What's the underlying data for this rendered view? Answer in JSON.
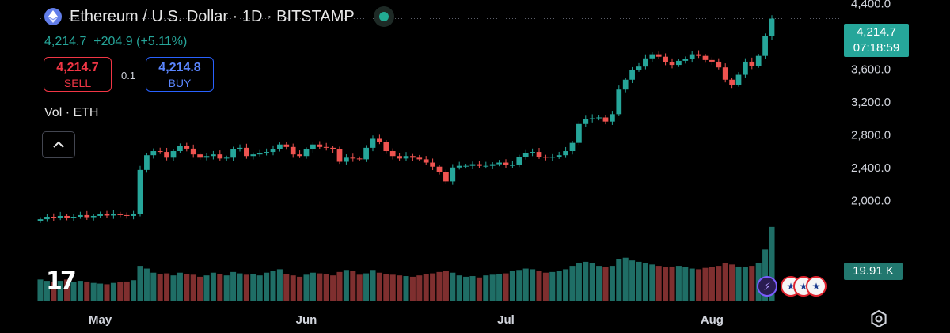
{
  "header": {
    "title": "Ethereum / U.S. Dollar · 1D · BITSTAMP",
    "last": "4,214.7",
    "change": "+204.9 (+5.11%)"
  },
  "trade": {
    "sell_price": "4,214.7",
    "sell_label": "SELL",
    "buy_price": "4,214.8",
    "buy_label": "BUY",
    "quantity": "0.1"
  },
  "volume_label": "Vol · ETH",
  "price_tag": {
    "price": "4,214.7",
    "countdown": "07:18:59"
  },
  "volume_tag": "19.91 K",
  "colors": {
    "up": "#26a69a",
    "down": "#ef5350",
    "vol_up": "#1f6e66",
    "vol_down": "#7f2f2f",
    "accent": "#2962ff"
  },
  "icons": [
    "ethereum-logo-icon",
    "live-status-icon",
    "collapse-chevron-icon",
    "tradingview-logo",
    "settings-icon",
    "lightning-event-icon",
    "us-flag-event-icon"
  ],
  "chart_data": {
    "type": "candlestick",
    "title": "",
    "y_ticks": [
      2000,
      2400,
      2800,
      3200,
      3600,
      4000,
      4400
    ],
    "y_tick_labels": [
      "2,000.0",
      "2,400.0",
      "2,800.0",
      "3,200.0",
      "3,600.0",
      "4,000.0",
      "4,400.0"
    ],
    "ylim": [
      1800,
      4480
    ],
    "x_tick_labels": [
      "May",
      "Jun",
      "Jul",
      "Aug"
    ],
    "x_tick_dates": [
      "2025-05-01",
      "2025-06-01",
      "2025-07-01",
      "2025-08-01"
    ],
    "dates_start": "2025-04-22",
    "dates_end": "2025-08-11",
    "last_price": 4214.7,
    "volume_last": "19.91 K",
    "closes": [
      1770,
      1800,
      1785,
      1810,
      1790,
      1800,
      1820,
      1795,
      1810,
      1830,
      1815,
      1835,
      1820,
      1810,
      1830,
      2370,
      2550,
      2600,
      2590,
      2520,
      2600,
      2660,
      2630,
      2560,
      2520,
      2540,
      2560,
      2510,
      2520,
      2620,
      2640,
      2540,
      2560,
      2580,
      2590,
      2620,
      2680,
      2650,
      2560,
      2540,
      2620,
      2680,
      2650,
      2640,
      2620,
      2470,
      2520,
      2510,
      2500,
      2640,
      2750,
      2710,
      2600,
      2540,
      2510,
      2540,
      2520,
      2500,
      2460,
      2410,
      2340,
      2230,
      2400,
      2420,
      2420,
      2440,
      2420,
      2420,
      2440,
      2460,
      2430,
      2430,
      2530,
      2580,
      2590,
      2530,
      2520,
      2530,
      2550,
      2600,
      2700,
      2930,
      2990,
      3000,
      3010,
      2960,
      3050,
      3350,
      3470,
      3590,
      3630,
      3730,
      3780,
      3750,
      3680,
      3650,
      3700,
      3720,
      3780,
      3760,
      3710,
      3690,
      3620,
      3470,
      3410,
      3530,
      3690,
      3640,
      3760,
      4000,
      4214.7
    ],
    "volumes": [
      320,
      300,
      280,
      300,
      320,
      280,
      300,
      290,
      270,
      260,
      250,
      270,
      280,
      290,
      310,
      520,
      480,
      420,
      400,
      410,
      380,
      420,
      400,
      390,
      360,
      380,
      420,
      400,
      380,
      430,
      410,
      390,
      400,
      380,
      420,
      450,
      470,
      400,
      380,
      360,
      390,
      420,
      410,
      400,
      380,
      430,
      460,
      440,
      390,
      410,
      460,
      420,
      400,
      390,
      380,
      370,
      360,
      380,
      400,
      410,
      430,
      440,
      420,
      380,
      360,
      370,
      350,
      380,
      390,
      400,
      410,
      440,
      460,
      480,
      470,
      440,
      420,
      430,
      450,
      470,
      520,
      560,
      580,
      560,
      520,
      500,
      520,
      620,
      640,
      600,
      580,
      560,
      540,
      520,
      500,
      510,
      520,
      500,
      480,
      470,
      490,
      500,
      520,
      560,
      540,
      510,
      500,
      520,
      560,
      760,
      1090
    ]
  }
}
